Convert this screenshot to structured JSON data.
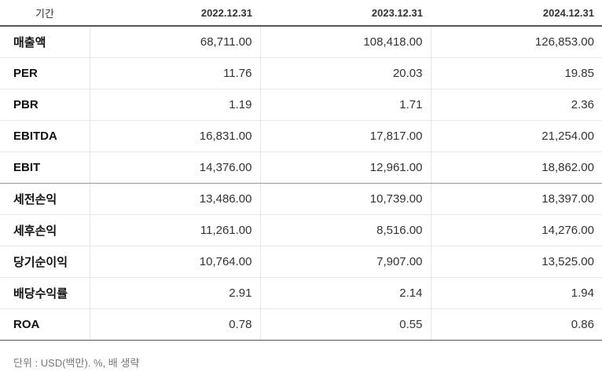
{
  "header": {
    "period_label": "기간",
    "years": [
      "2022.12.31",
      "2023.12.31",
      "2024.12.31"
    ]
  },
  "rows": [
    {
      "label": "매출액",
      "values": [
        "68,711.00",
        "108,418.00",
        "126,853.00"
      ]
    },
    {
      "label": "PER",
      "values": [
        "11.76",
        "20.03",
        "19.85"
      ]
    },
    {
      "label": "PBR",
      "values": [
        "1.19",
        "1.71",
        "2.36"
      ]
    },
    {
      "label": "EBITDA",
      "values": [
        "16,831.00",
        "17,817.00",
        "21,254.00"
      ]
    },
    {
      "label": "EBIT",
      "values": [
        "14,376.00",
        "12,961.00",
        "18,862.00"
      ]
    },
    {
      "label": "세전손익",
      "values": [
        "13,486.00",
        "10,739.00",
        "18,397.00"
      ]
    },
    {
      "label": "세후손익",
      "values": [
        "11,261.00",
        "8,516.00",
        "14,276.00"
      ]
    },
    {
      "label": "당기순이익",
      "values": [
        "10,764.00",
        "7,907.00",
        "13,525.00"
      ]
    },
    {
      "label": "배당수익률",
      "values": [
        "2.91",
        "2.14",
        "1.94"
      ]
    },
    {
      "label": "ROA",
      "values": [
        "0.78",
        "0.55",
        "0.86"
      ]
    }
  ],
  "footnote": "단위 : USD(백만). %, 배 생략"
}
